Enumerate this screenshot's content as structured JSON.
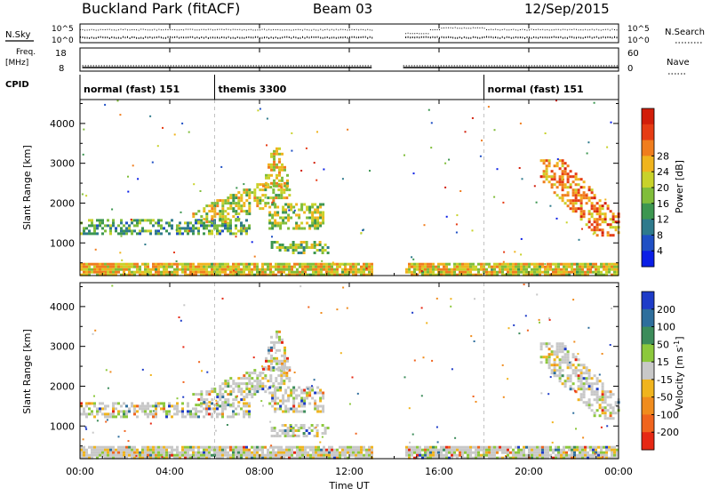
{
  "header": {
    "station": "Buckland Park (fitACF)",
    "beam": "Beam 03",
    "date": "12/Sep/2015"
  },
  "strip_labels": {
    "nsky": "N.Sky",
    "nsearch": "N.Search",
    "nsky_ticks": [
      "10^5",
      "10^0"
    ],
    "nsearch_ticks": [
      "10^5",
      "10^0"
    ],
    "freq_line1": "Freq.",
    "freq_line2": "[MHz]",
    "freq_ticks": [
      "18",
      "8"
    ],
    "nave": "Nave",
    "nave_ticks": [
      "60",
      "0"
    ],
    "cpid": "CPID",
    "cpid_segments": [
      {
        "label": "normal (fast) 151",
        "start_hour": 0
      },
      {
        "label": "themis 3300",
        "start_hour": 6
      },
      {
        "label": "normal (fast) 151",
        "start_hour": 18
      }
    ]
  },
  "chart_data": [
    {
      "type": "heatmap",
      "panel": "power",
      "ylabel": "Slant Range [km]",
      "xlabel": "Time UT",
      "x_ticks": [
        "00:00",
        "04:00",
        "08:00",
        "12:00",
        "16:00",
        "20:00",
        "00:00"
      ],
      "x_tick_hours": [
        0,
        4,
        8,
        12,
        16,
        20,
        24
      ],
      "y_ticks": [
        1000,
        2000,
        3000,
        4000
      ],
      "ylim": [
        180,
        4600
      ],
      "xlim": [
        0,
        24
      ],
      "colorbar": {
        "label": "Power [dB]",
        "ticks": [
          "4",
          "8",
          "12",
          "16",
          "20",
          "24",
          "28"
        ],
        "colors": [
          "#0a1ee6",
          "#1f4fc4",
          "#2e7a8c",
          "#3c9650",
          "#80bd3a",
          "#c8d22a",
          "#f0b41e",
          "#f07d1e",
          "#e63c14",
          "#d21e0a"
        ]
      },
      "data_gap_hours": [
        13.0,
        14.4
      ],
      "regions": [
        {
          "name": "band-1300",
          "t0": 0.0,
          "t1": 7.5,
          "r0": 1200,
          "r1": 1600,
          "level": 0.35
        },
        {
          "name": "rising-arc",
          "t0": 5.0,
          "t1": 9.3,
          "r0": 1500,
          "r1": 2500,
          "level": 0.55
        },
        {
          "name": "peak-3000",
          "t0": 8.0,
          "t1": 9.3,
          "r0": 2400,
          "r1": 3400,
          "level": 0.6
        },
        {
          "name": "blob-1700",
          "t0": 8.4,
          "t1": 10.8,
          "r0": 1350,
          "r1": 2000,
          "level": 0.5
        },
        {
          "name": "blob-900",
          "t0": 8.5,
          "t1": 11.0,
          "r0": 750,
          "r1": 1050,
          "level": 0.45
        },
        {
          "name": "late-arc",
          "t0": 20.5,
          "t1": 24.0,
          "r0": 1200,
          "r1": 3100,
          "level": 0.75
        },
        {
          "name": "ground-scatter",
          "t0": 0.0,
          "t1": 24.0,
          "r0": 180,
          "r1": 500,
          "level": 0.6
        }
      ]
    },
    {
      "type": "heatmap",
      "panel": "velocity",
      "ylabel": "Slant Range [km]",
      "xlabel": "Time UT",
      "x_ticks": [
        "00:00",
        "04:00",
        "08:00",
        "12:00",
        "16:00",
        "20:00",
        "00:00"
      ],
      "x_tick_hours": [
        0,
        4,
        8,
        12,
        16,
        20,
        24
      ],
      "y_ticks": [
        1000,
        2000,
        3000,
        4000
      ],
      "ylim": [
        180,
        4600
      ],
      "xlim": [
        0,
        24
      ],
      "colorbar": {
        "label": "Velocity [m s",
        "label_sup": "-1",
        "label_end": "]",
        "ticks": [
          "200",
          "100",
          "50",
          "15",
          "-15",
          "-50",
          "-100",
          "-200"
        ],
        "colors": [
          "#1e3cc8",
          "#2e6e9c",
          "#3c8c5a",
          "#8cc83c",
          "#c8c8c8",
          "#f0b41e",
          "#f08c1e",
          "#f0641e",
          "#e62814"
        ]
      },
      "data_gap_hours": [
        13.0,
        14.4
      ]
    }
  ]
}
